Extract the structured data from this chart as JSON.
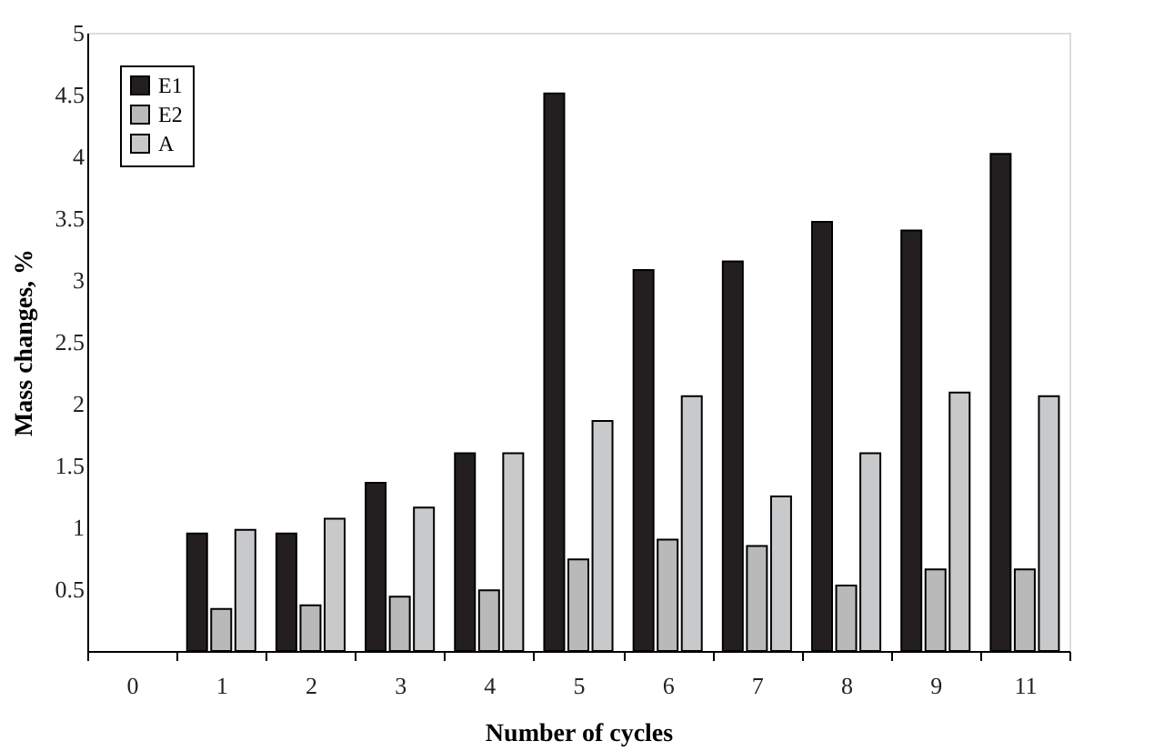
{
  "chart_data": {
    "type": "bar",
    "xlabel": "Number of cycles",
    "ylabel": "Mass changes, %",
    "categories": [
      "0",
      "1",
      "2",
      "3",
      "4",
      "5",
      "6",
      "7",
      "8",
      "9",
      "11"
    ],
    "series": [
      {
        "name": "E1",
        "color": "#231f20",
        "values": [
          null,
          0.95,
          0.95,
          1.36,
          1.6,
          4.51,
          3.08,
          3.15,
          3.47,
          3.4,
          4.02
        ]
      },
      {
        "name": "E2",
        "color": "#b9b9b9",
        "values": [
          null,
          0.34,
          0.37,
          0.44,
          0.49,
          0.74,
          0.9,
          0.85,
          0.53,
          0.66,
          0.66
        ]
      },
      {
        "name": "A",
        "color": "#c8c9cb",
        "values": [
          null,
          0.98,
          1.07,
          1.16,
          1.6,
          1.86,
          2.06,
          1.25,
          1.6,
          2.09,
          2.06
        ]
      }
    ],
    "ylim": [
      0,
      5
    ],
    "yticks": [
      0.5,
      1,
      1.5,
      2,
      2.5,
      3,
      3.5,
      4,
      4.5,
      5
    ],
    "grid": false,
    "legend": "top left"
  }
}
